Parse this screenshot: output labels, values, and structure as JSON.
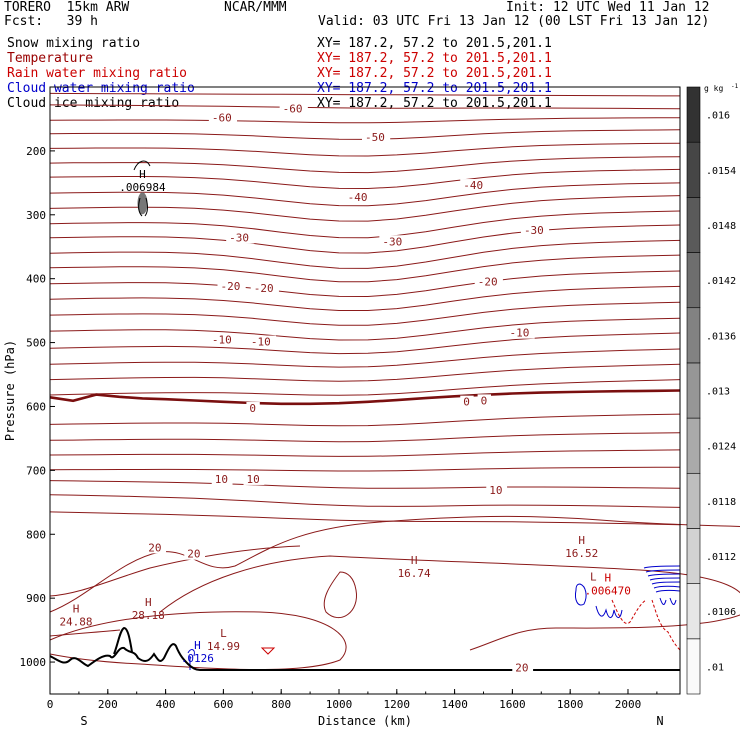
{
  "header": {
    "model": "TORERO  15km ARW",
    "org": "NCAR/MMM",
    "init": "Init: 12 UTC Wed 11 Jan 12",
    "fcst": "Fcst:   39 h",
    "valid": "Valid: 03 UTC Fri 13 Jan 12 (00 LST Fri 13 Jan 12)"
  },
  "fields": [
    {
      "name": "Snow mixing ratio",
      "color": "#000000"
    },
    {
      "name": "Temperature",
      "color": "#990000"
    },
    {
      "name": "Rain water mixing ratio",
      "color": "#cc0000"
    },
    {
      "name": "Cloud water mixing ratio",
      "color": "#0000cc"
    },
    {
      "name": "Cloud ice mixing ratio",
      "color": "#000000"
    }
  ],
  "xy": [
    {
      "text": "XY= 187.2, 57.2 to 201.5,201.1",
      "color": "#000000"
    },
    {
      "text": "XY= 187.2, 57.2 to 201.5,201.1",
      "color": "#cc0000"
    },
    {
      "text": "XY= 187.2, 57.2 to 201.5,201.1",
      "color": "#cc0000"
    },
    {
      "text": "XY= 187.2, 57.2 to 201.5,201.1",
      "color": "#0000cc"
    },
    {
      "text": "XY= 187.2, 57.2 to 201.5,201.1",
      "color": "#000000"
    }
  ],
  "chart_data": {
    "type": "contour cross-section",
    "xlabel": "Distance (km)",
    "ylabel": "Pressure (hPa)",
    "xlim": [
      0,
      2180
    ],
    "ylim": [
      1050,
      100
    ],
    "x_ticks": [
      0,
      200,
      400,
      600,
      800,
      1000,
      1200,
      1400,
      1600,
      1800,
      2000
    ],
    "y_ticks": [
      200,
      300,
      400,
      500,
      600,
      700,
      800,
      900,
      1000
    ],
    "orientation": {
      "left": "S",
      "right": "N"
    },
    "colorbar": {
      "unit": "g kg",
      "unit_exp": "-1",
      "ticks": [
        ".01",
        ".0106",
        ".0112",
        ".0118",
        ".0124",
        ".013",
        ".0136",
        ".0142",
        ".0148",
        ".0154",
        ".016"
      ]
    },
    "contour_labels": [
      {
        "text": "-60",
        "x": 805,
        "p": 135
      },
      {
        "text": "-60",
        "x": 560,
        "p": 149
      },
      {
        "text": "-50",
        "x": 1090,
        "p": 180
      },
      {
        "text": "-40",
        "x": 1430,
        "p": 255
      },
      {
        "text": "-40",
        "x": 1030,
        "p": 274
      },
      {
        "text": "-30",
        "x": 1640,
        "p": 325
      },
      {
        "text": "-30",
        "x": 620,
        "p": 337
      },
      {
        "text": "-30",
        "x": 1150,
        "p": 343
      },
      {
        "text": "-20",
        "x": 1480,
        "p": 406
      },
      {
        "text": "-20",
        "x": 590,
        "p": 413
      },
      {
        "text": "-20",
        "x": 705,
        "p": 416
      },
      {
        "text": "-10",
        "x": 1590,
        "p": 486
      },
      {
        "text": "-10",
        "x": 560,
        "p": 497
      },
      {
        "text": "-10",
        "x": 695,
        "p": 500
      },
      {
        "text": "0",
        "x": 690,
        "p": 604
      },
      {
        "text": "0",
        "x": 1430,
        "p": 594
      },
      {
        "text": "0",
        "x": 1490,
        "p": 592
      },
      {
        "text": "10",
        "x": 570,
        "p": 715
      },
      {
        "text": "10",
        "x": 680,
        "p": 715
      },
      {
        "text": "10",
        "x": 1520,
        "p": 732
      },
      {
        "text": "20",
        "x": 340,
        "p": 822
      },
      {
        "text": "20",
        "x": 475,
        "p": 832
      },
      {
        "text": "20",
        "x": 1610,
        "p": 1010
      }
    ],
    "extrema": [
      {
        "type": "H",
        "value": ".006984",
        "x": 320,
        "p": 252,
        "field": "Snow mixing ratio"
      },
      {
        "type": "H",
        "value": "24.88",
        "x": 90,
        "p": 932,
        "field": "Temperature"
      },
      {
        "type": "H",
        "value": "28.18",
        "x": 340,
        "p": 922,
        "field": "Temperature"
      },
      {
        "type": "L",
        "value": "14.99",
        "x": 600,
        "p": 970,
        "field": "Temperature"
      },
      {
        "type": "H",
        "value": "16.74",
        "x": 1260,
        "p": 856,
        "field": "Temperature"
      },
      {
        "type": "H",
        "value": "16.52",
        "x": 1840,
        "p": 825,
        "field": "Temperature"
      },
      {
        "type": "H",
        "value": ".0126",
        "x": 510,
        "p": 989,
        "field": "Cloud water mixing ratio"
      },
      {
        "type": "L",
        "value": "",
        "x": 1880,
        "p": 882,
        "field": "Temperature"
      },
      {
        "type": "H",
        "value": ".006470",
        "x": 1930,
        "p": 883,
        "field": "Rain water mixing ratio"
      }
    ],
    "isotherm_levels_C": [
      -60,
      -50,
      -40,
      -30,
      -20,
      -10,
      0,
      10,
      20
    ],
    "freezing_level_hPa": 595,
    "grid": false
  }
}
